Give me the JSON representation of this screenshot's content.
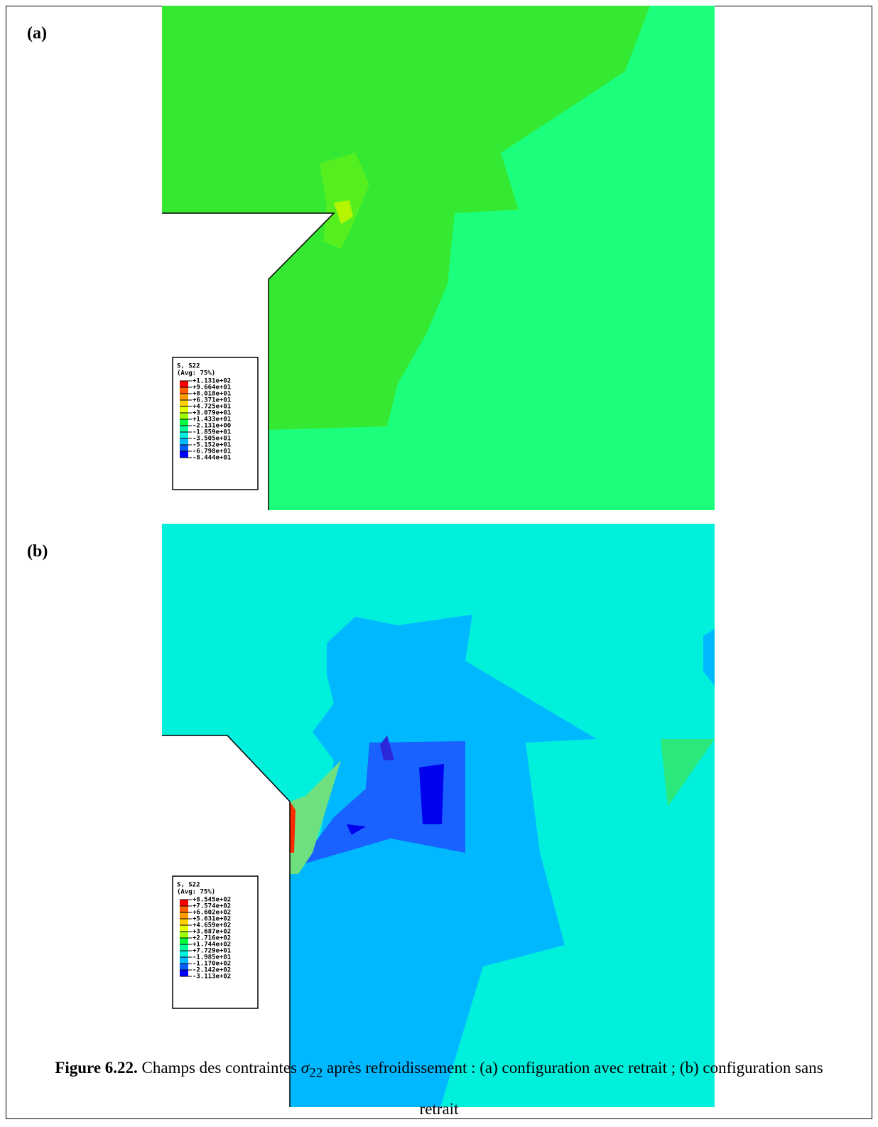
{
  "panels": [
    {
      "label": "(a)",
      "legend": {
        "title": "S, S22",
        "subtitle": "(Avg: 75%)",
        "labels": [
          "+1.131e+02",
          "+9.664e+01",
          "+8.018e+01",
          "+6.371e+01",
          "+4.725e+01",
          "+3.079e+01",
          "+1.433e+01",
          "-2.131e+00",
          "-1.859e+01",
          "-3.505e+01",
          "-5.152e+01",
          "-6.798e+01",
          "-8.444e+01"
        ]
      }
    },
    {
      "label": "(b)",
      "legend": {
        "title": "S, S22",
        "subtitle": "(Avg: 75%)",
        "labels": [
          "+8.545e+02",
          "+7.574e+02",
          "+6.602e+02",
          "+5.631e+02",
          "+4.659e+02",
          "+3.687e+02",
          "+2.716e+02",
          "+1.744e+02",
          "+7.729e+01",
          "-1.985e+01",
          "-1.170e+02",
          "-2.142e+02",
          "-3.113e+02"
        ]
      }
    }
  ],
  "caption": {
    "label": "Figure 6.22.",
    "text_before": " Champs des contraintes ",
    "symbol": "σ",
    "subscript": "22",
    "text_after": " après refroidissement : (a) configuration avec retrait ; (b) configuration sans retrait"
  }
}
